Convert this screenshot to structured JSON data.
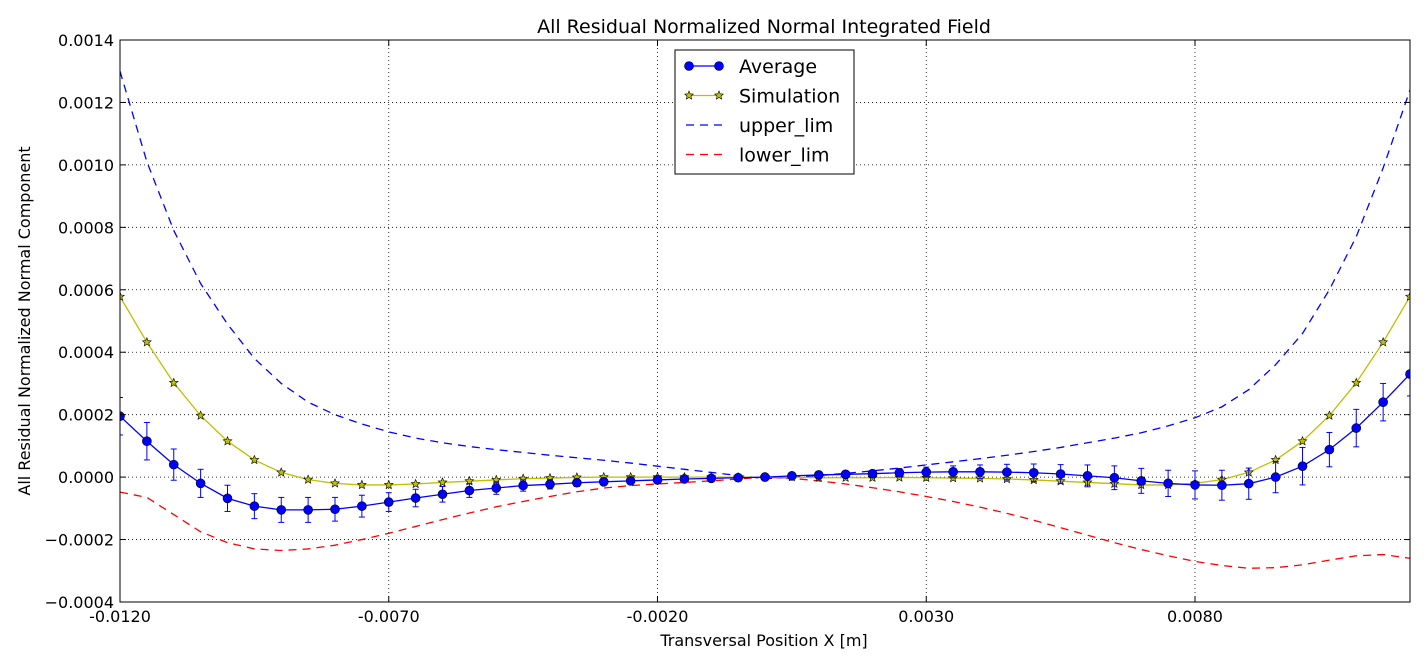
{
  "chart_data": {
    "type": "line",
    "title": "All Residual Normalized Normal Integrated Field",
    "xlabel": "Transversal Position X [m]",
    "ylabel": "All Residual Normalized Normal Component",
    "xlim": [
      -0.012,
      0.012
    ],
    "ylim": [
      -0.0004,
      0.0014
    ],
    "xticks": [
      -0.012,
      -0.007,
      -0.002,
      0.003,
      0.008
    ],
    "xtick_labels": [
      "-0.0120",
      "-0.0070",
      "-0.0020",
      "0.0030",
      "0.0080"
    ],
    "yticks": [
      -0.0004,
      -0.0002,
      0.0,
      0.0002,
      0.0004,
      0.0006,
      0.0008,
      0.001,
      0.0012,
      0.0014
    ],
    "ytick_labels": [
      "−0.0004",
      "−0.0002",
      "0.0000",
      "0.0002",
      "0.0004",
      "0.0006",
      "0.0008",
      "0.0010",
      "0.0012",
      "0.0014"
    ],
    "grid": true,
    "legend_position": "top-center",
    "x": [
      -0.012,
      -0.0115,
      -0.011,
      -0.0105,
      -0.01,
      -0.0095,
      -0.009,
      -0.0085,
      -0.008,
      -0.0075,
      -0.007,
      -0.0065,
      -0.006,
      -0.0055,
      -0.005,
      -0.0045,
      -0.004,
      -0.0035,
      -0.003,
      -0.0025,
      -0.002,
      -0.0015,
      -0.001,
      -0.0005,
      0.0,
      0.0005,
      0.001,
      0.0015,
      0.002,
      0.0025,
      0.003,
      0.0035,
      0.004,
      0.0045,
      0.005,
      0.0055,
      0.006,
      0.0065,
      0.007,
      0.0075,
      0.008,
      0.0085,
      0.009,
      0.0095,
      0.01,
      0.0105,
      0.011,
      0.0115,
      0.012
    ],
    "series": [
      {
        "name": "Average",
        "color": "#0000ff",
        "marker": "circle",
        "values": [
          0.000195,
          0.000115,
          4e-05,
          -2e-05,
          -6.8e-05,
          -9.3e-05,
          -0.000105,
          -0.000105,
          -0.000103,
          -9.3e-05,
          -8e-05,
          -6.7e-05,
          -5.5e-05,
          -4.3e-05,
          -3.5e-05,
          -2.7e-05,
          -2.3e-05,
          -1.8e-05,
          -1.5e-05,
          -1.2e-05,
          -9e-06,
          -6e-06,
          -4e-06,
          -2e-06,
          0.0,
          4e-06,
          7e-06,
          9e-06,
          1.1e-05,
          1.4e-05,
          1.6e-05,
          1.7e-05,
          1.7e-05,
          1.6e-05,
          1.4e-05,
          1e-05,
          4e-06,
          -2e-06,
          -1.2e-05,
          -2e-05,
          -2.5e-05,
          -2.6e-05,
          -2.1e-05,
          0.0,
          3.5e-05,
          8.8e-05,
          0.000157,
          0.00024,
          0.00033
        ],
        "errors": [
          6e-05,
          6e-05,
          5e-05,
          4.5e-05,
          4.2e-05,
          4e-05,
          4e-05,
          4e-05,
          3.8e-05,
          3.5e-05,
          3e-05,
          2.8e-05,
          2.5e-05,
          2.2e-05,
          2e-05,
          1.8e-05,
          1.5e-05,
          1.2e-05,
          1e-05,
          9e-06,
          8e-06,
          7e-06,
          6e-06,
          5e-06,
          4e-06,
          5e-06,
          6e-06,
          8e-06,
          1e-05,
          1.3e-05,
          1.6e-05,
          1.9e-05,
          2.2e-05,
          2.5e-05,
          2.8e-05,
          3e-05,
          3.5e-05,
          3.8e-05,
          4e-05,
          4.2e-05,
          4.5e-05,
          4.8e-05,
          5e-05,
          5e-05,
          6e-05,
          5.5e-05,
          6e-05,
          6e-05,
          7e-05
        ]
      },
      {
        "name": "Simulation",
        "color": "#bfbf00",
        "marker": "star",
        "values": [
          0.000578,
          0.000432,
          0.000302,
          0.000197,
          0.000115,
          5.5e-05,
          1.5e-05,
          -8e-06,
          -2e-05,
          -2.5e-05,
          -2.5e-05,
          -2.2e-05,
          -1.7e-05,
          -1.3e-05,
          -9e-06,
          -5e-06,
          -3e-06,
          -1e-06,
          0.0,
          0.0,
          0.0,
          0.0,
          0.0,
          0.0,
          0.0,
          0.0,
          -2e-06,
          -2e-06,
          -2e-06,
          -1e-06,
          -2e-06,
          -3e-06,
          -4e-06,
          -6e-06,
          -9e-06,
          -1.3e-05,
          -1.7e-05,
          -2.1e-05,
          -2.5e-05,
          -2.5e-05,
          -2e-05,
          -8e-06,
          1.5e-05,
          5.5e-05,
          0.000115,
          0.000197,
          0.000302,
          0.000432,
          0.000578
        ]
      },
      {
        "name": "upper_lim",
        "color": "#0000ff",
        "style": "dashed",
        "values": [
          0.0013,
          0.00101,
          0.00079,
          0.00062,
          0.00049,
          0.00038,
          0.0003,
          0.00024,
          0.0002,
          0.00017,
          0.000145,
          0.000125,
          0.00011,
          9.8e-05,
          8.8e-05,
          7.9e-05,
          7e-05,
          6.2e-05,
          5.4e-05,
          4.5e-05,
          3.5e-05,
          2.5e-05,
          1.5e-05,
          5e-06,
          -5e-06,
          0.0,
          5e-06,
          1.2e-05,
          2e-05,
          2.9e-05,
          3.9e-05,
          4.9e-05,
          5.9e-05,
          7e-05,
          8.2e-05,
          9.5e-05,
          0.00011,
          0.000125,
          0.000142,
          0.000164,
          0.00019,
          0.000225,
          0.00028,
          0.00036,
          0.00046,
          0.0006,
          0.00077,
          0.00099,
          0.00124
        ]
      },
      {
        "name": "lower_lim",
        "color": "#ff0000",
        "style": "dashed",
        "values": [
          -4.8e-05,
          -6.5e-05,
          -0.00012,
          -0.000175,
          -0.00021,
          -0.00023,
          -0.000235,
          -0.00023,
          -0.000218,
          -0.0002,
          -0.00018,
          -0.000158,
          -0.000136,
          -0.000115,
          -9.5e-05,
          -7.8e-05,
          -6.2e-05,
          -4.7e-05,
          -3.5e-05,
          -2.7e-05,
          -2.2e-05,
          -1.7e-05,
          -1.2e-05,
          -6e-06,
          0.0,
          -4e-06,
          -1.2e-05,
          -2.2e-05,
          -3.4e-05,
          -4.7e-05,
          -6.2e-05,
          -7.8e-05,
          -9.6e-05,
          -0.000116,
          -0.000138,
          -0.000162,
          -0.000186,
          -0.00021,
          -0.000232,
          -0.000252,
          -0.00027,
          -0.000283,
          -0.000292,
          -0.00029,
          -0.000281,
          -0.000266,
          -0.000252,
          -0.000248,
          -0.00026
        ]
      }
    ]
  }
}
